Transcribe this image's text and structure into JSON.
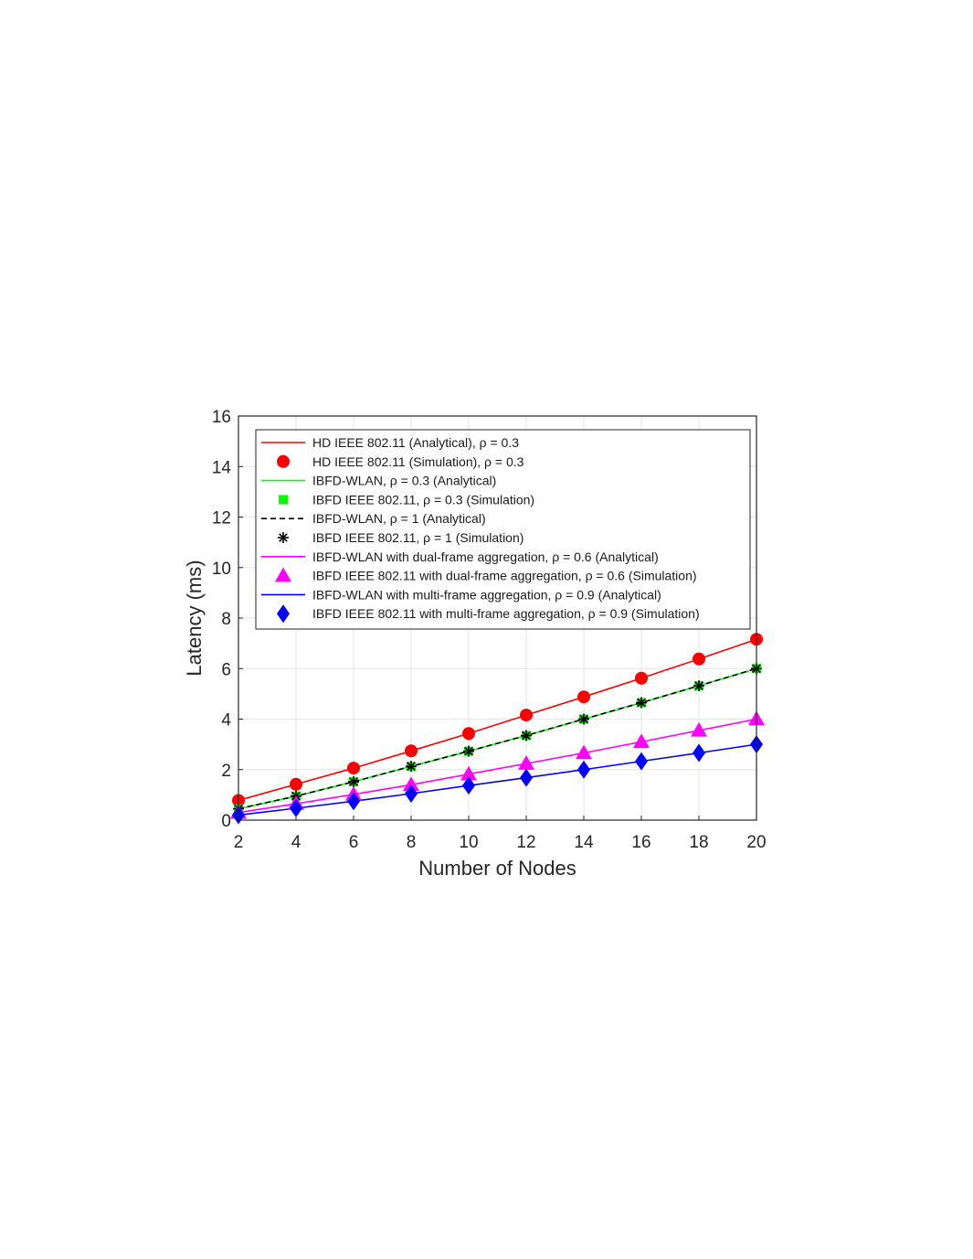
{
  "chart_data": {
    "type": "line",
    "xlabel": "Number of Nodes",
    "ylabel": "Latency (ms)",
    "x": [
      2,
      4,
      6,
      8,
      10,
      12,
      14,
      16,
      18,
      20
    ],
    "xlim": [
      2,
      20
    ],
    "ylim": [
      0,
      16
    ],
    "xticks": [
      "2",
      "4",
      "6",
      "8",
      "10",
      "12",
      "14",
      "16",
      "18",
      "20"
    ],
    "yticks": [
      "0",
      "2",
      "4",
      "6",
      "8",
      "10",
      "12",
      "14",
      "16"
    ],
    "grid": true,
    "legend_position": "top-left",
    "series": [
      {
        "name": "HD IEEE 802.11 (Analytical), ρ = 0.3",
        "style": "line",
        "color": "#ff0000",
        "values": [
          0.78,
          1.42,
          2.06,
          2.74,
          3.43,
          4.16,
          4.88,
          5.62,
          6.38,
          7.16
        ]
      },
      {
        "name": "HD IEEE 802.11 (Simulation), ρ = 0.3",
        "style": "marker",
        "marker": "circle",
        "color": "#ff0000",
        "values": [
          0.78,
          1.42,
          2.06,
          2.74,
          3.43,
          4.16,
          4.88,
          5.62,
          6.38,
          7.16
        ]
      },
      {
        "name": "IBFD-WLAN, ρ = 0.3 (Analytical)",
        "style": "line",
        "color": "#00ff00",
        "values": [
          0.45,
          0.95,
          1.52,
          2.13,
          2.73,
          3.35,
          4.0,
          4.65,
          5.32,
          6.0
        ]
      },
      {
        "name": "IBFD IEEE 802.11, ρ = 0.3 (Simulation)",
        "style": "marker",
        "marker": "square",
        "color": "#00ff00",
        "values": [
          0.45,
          0.95,
          1.52,
          2.13,
          2.73,
          3.35,
          4.0,
          4.65,
          5.32,
          6.0
        ]
      },
      {
        "name": "IBFD-WLAN, ρ = 1 (Analytical)",
        "style": "dashed",
        "color": "#000000",
        "values": [
          0.45,
          0.95,
          1.52,
          2.13,
          2.73,
          3.35,
          4.0,
          4.65,
          5.32,
          6.0
        ]
      },
      {
        "name": "IBFD IEEE 802.11, ρ = 1 (Simulation)",
        "style": "marker",
        "marker": "asterisk",
        "color": "#000000",
        "values": [
          0.45,
          0.95,
          1.52,
          2.13,
          2.73,
          3.35,
          4.0,
          4.65,
          5.32,
          6.0
        ]
      },
      {
        "name": "IBFD-WLAN with dual-frame aggregation, ρ = 0.6 (Analytical)",
        "style": "line",
        "color": "#ff00ff",
        "values": [
          0.3,
          0.65,
          1.02,
          1.4,
          1.82,
          2.24,
          2.66,
          3.1,
          3.55,
          4.0
        ]
      },
      {
        "name": "IBFD IEEE 802.11 with dual-frame aggregation, ρ = 0.6 (Simulation)",
        "style": "marker",
        "marker": "triangle",
        "color": "#ff00ff",
        "values": [
          0.3,
          0.65,
          1.02,
          1.4,
          1.82,
          2.24,
          2.66,
          3.1,
          3.55,
          4.0
        ]
      },
      {
        "name": "IBFD-WLAN with multi-frame aggregation, ρ = 0.9 (Analytical)",
        "style": "line",
        "color": "#0000ff",
        "values": [
          0.2,
          0.47,
          0.75,
          1.05,
          1.37,
          1.68,
          2.0,
          2.33,
          2.66,
          3.0
        ]
      },
      {
        "name": "IBFD IEEE 802.11 with multi-frame aggregation, ρ = 0.9 (Simulation)",
        "style": "marker",
        "marker": "diamond",
        "color": "#0000ff",
        "values": [
          0.2,
          0.47,
          0.75,
          1.05,
          1.37,
          1.68,
          2.0,
          2.33,
          2.66,
          3.0
        ]
      }
    ]
  }
}
